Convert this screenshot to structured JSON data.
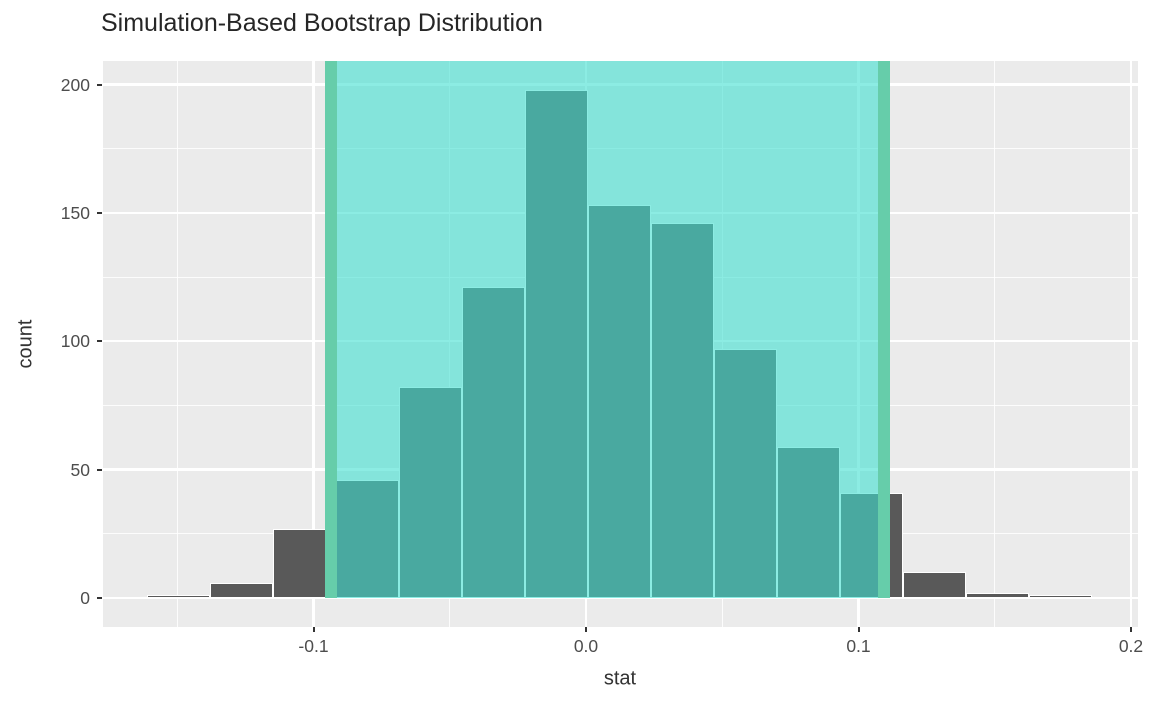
{
  "title": "Simulation-Based Bootstrap Distribution",
  "axes": {
    "x_label": "stat",
    "y_label": "count",
    "x_tick_labels": [
      "-0.1",
      "0.0",
      "0.1",
      "0.2"
    ],
    "y_tick_labels": [
      "200",
      "150",
      "100",
      "50",
      "0"
    ]
  },
  "chart_data": {
    "type": "bar",
    "subtype": "histogram",
    "title": "Simulation-Based Bootstrap Distribution",
    "xlabel": "stat",
    "ylabel": "count",
    "xlim": [
      -0.1773,
      0.2026
    ],
    "ylim": [
      0,
      208
    ],
    "x_ticks": [
      -0.1,
      0.0,
      0.1,
      0.2
    ],
    "x_minor_ticks": [
      -0.15,
      -0.05,
      0.05,
      0.15
    ],
    "y_ticks": [
      0,
      50,
      100,
      150,
      200
    ],
    "y_ticks_desc": [
      200,
      150,
      100,
      50,
      0
    ],
    "y_minor_ticks": [
      25,
      75,
      125,
      175
    ],
    "grid": true,
    "legend": "none",
    "bin_width": 0.02312,
    "bin_edges": [
      -0.18422,
      -0.1611,
      -0.13798,
      -0.11486,
      -0.09174,
      -0.06862,
      -0.0455,
      -0.02239,
      0.00073,
      0.02385,
      0.04697,
      0.07009,
      0.09321,
      0.11633,
      0.13945,
      0.16257,
      0.18569,
      0.20881
    ],
    "counts": [
      0,
      1,
      6,
      27,
      46,
      82,
      121,
      198,
      153,
      146,
      97,
      59,
      41,
      10,
      2,
      1,
      0
    ],
    "shaded_confidence_interval": {
      "lower": -0.0935,
      "upper": 0.1094
    }
  },
  "colors": {
    "background": "#FFFFFF",
    "panel": "#EBEBEB",
    "grid": "#FFFFFF",
    "bar_fill": "#595959",
    "bar_border": "#FFFFFF",
    "ci_fill": "#40E0D0",
    "ci_fill_alpha": 0.6,
    "ci_line": "#66CDAA",
    "title_text": "#262626",
    "tick_text": "#4D4D4D"
  }
}
